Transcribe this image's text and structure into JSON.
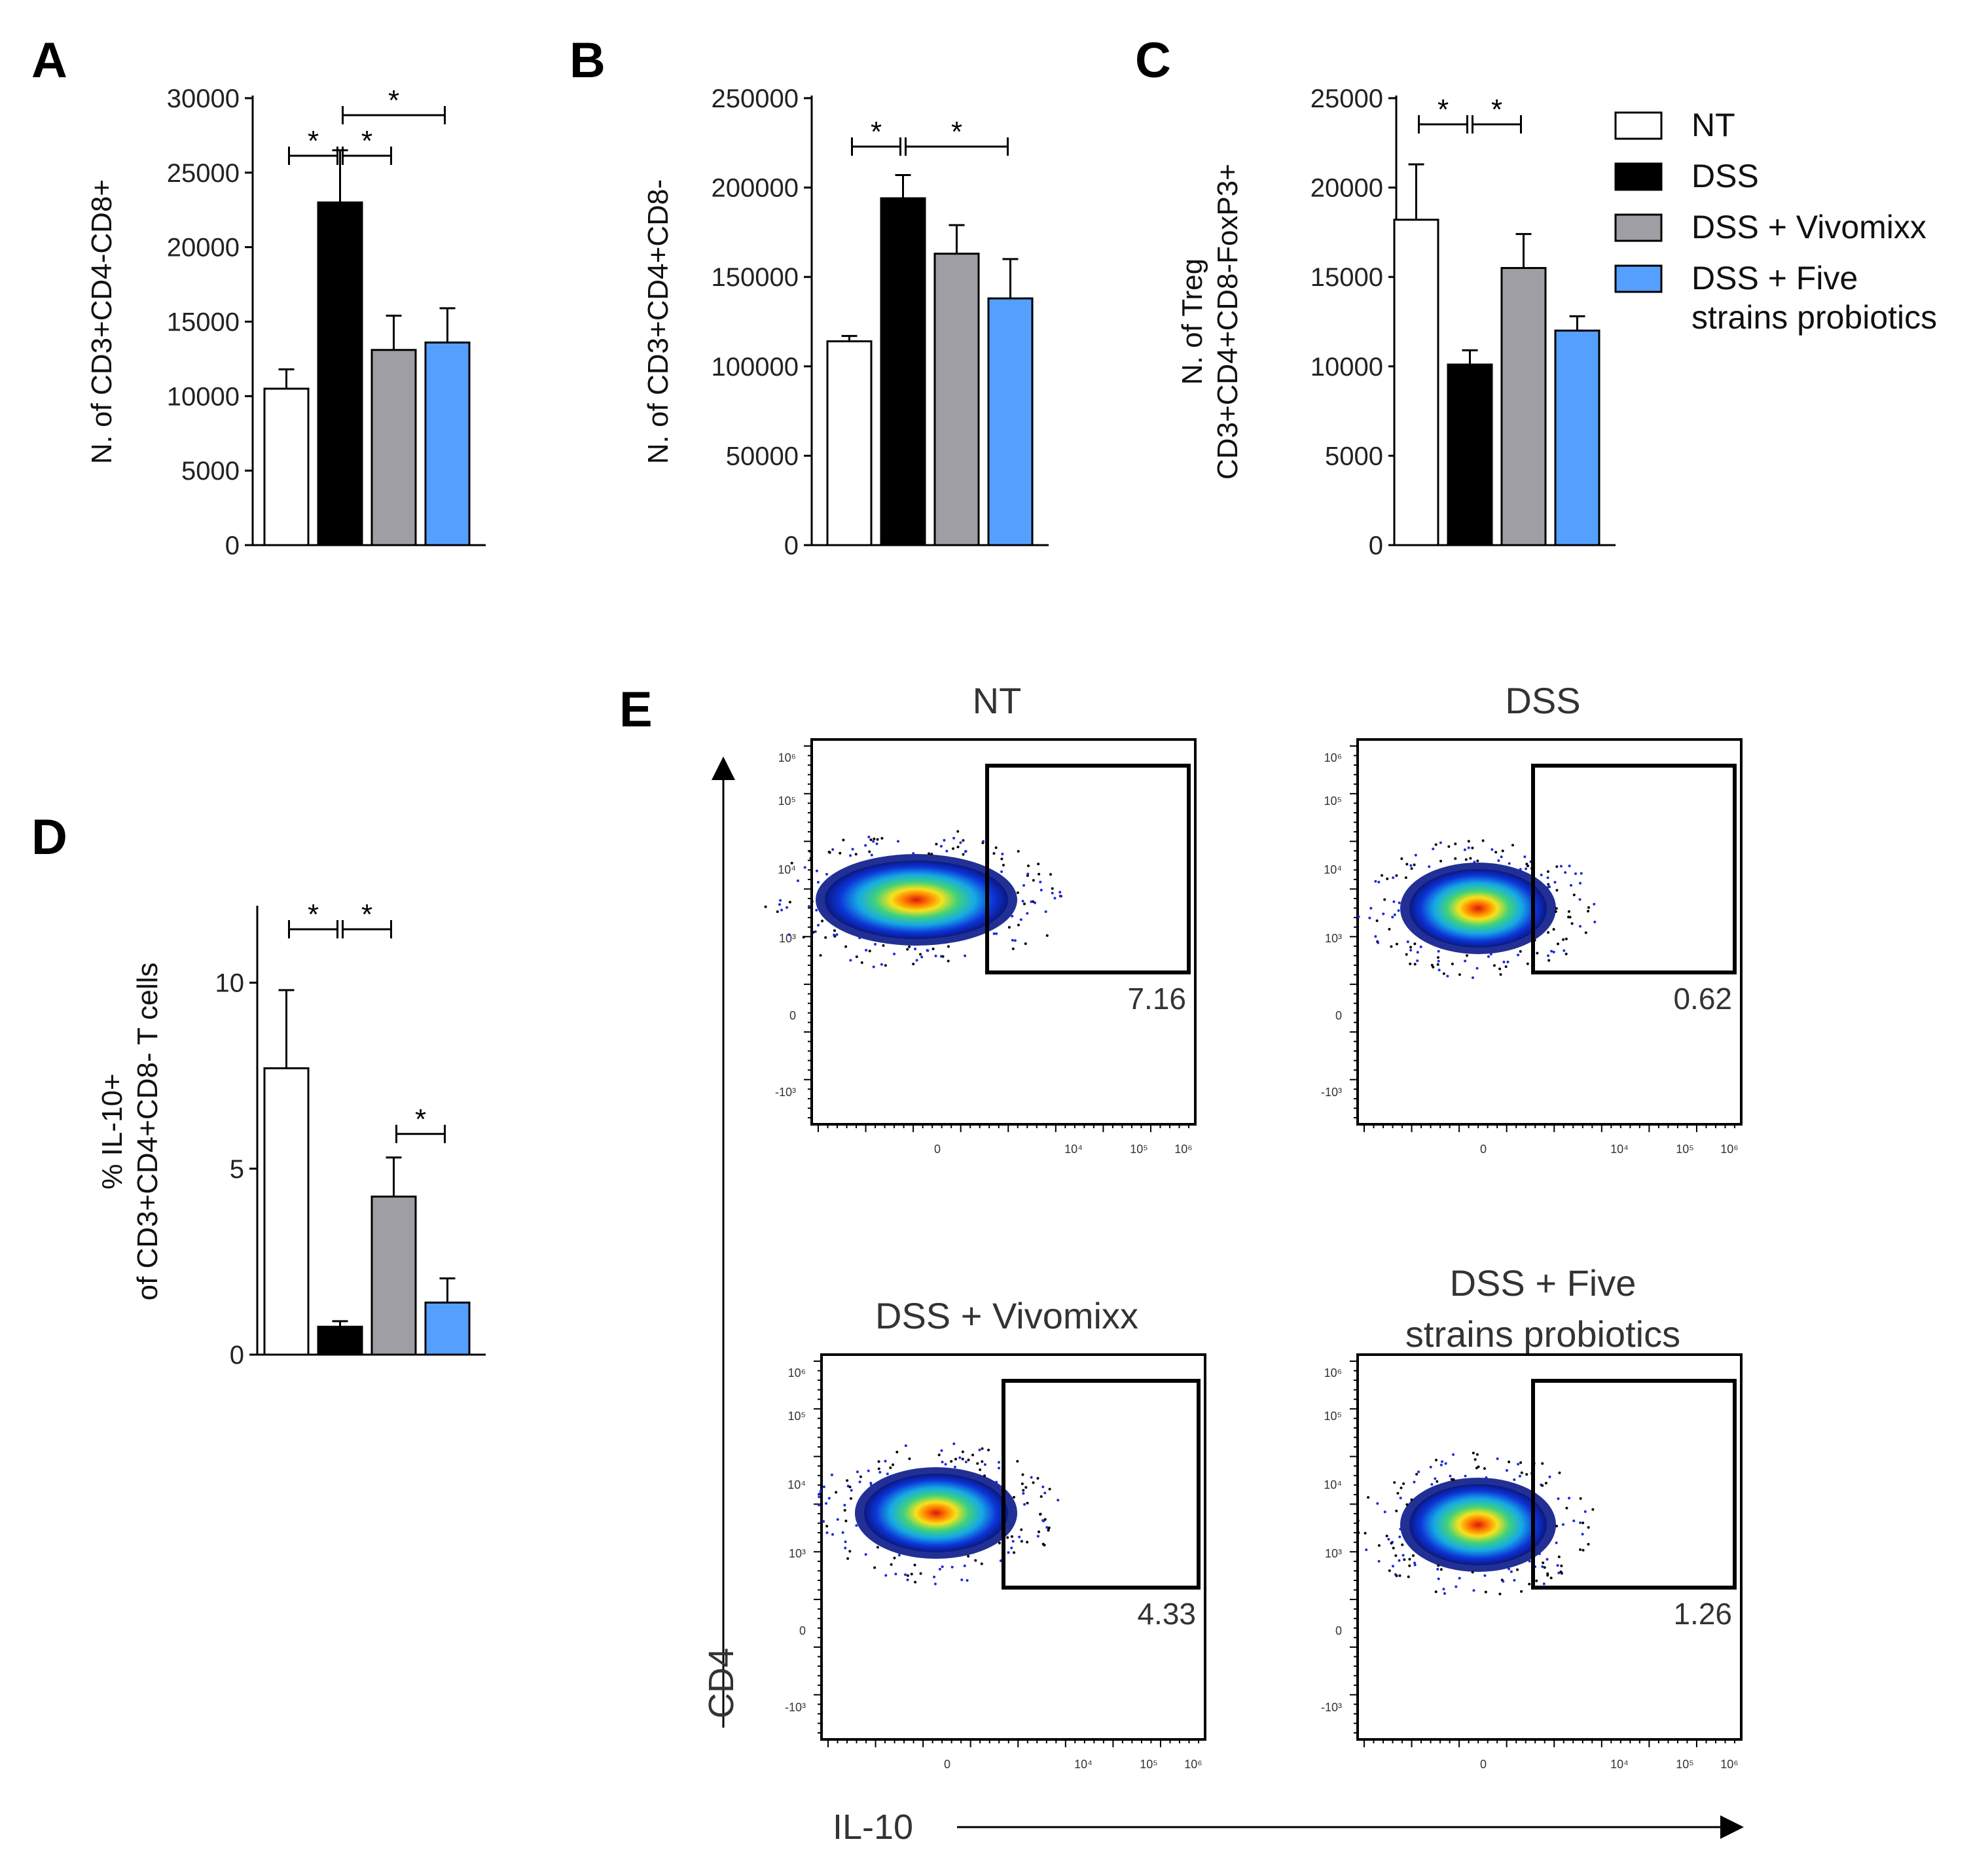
{
  "colors": {
    "NT": "#ffffff",
    "DSS": "#000000",
    "DSS + Vivomixx": "#9e9ea4",
    "DSS + Five strains probiotics": "#55a0ff"
  },
  "legend": {
    "items": [
      {
        "label_lines": [
          "NT"
        ],
        "color": "#ffffff"
      },
      {
        "label_lines": [
          "DSS"
        ],
        "color": "#000000"
      },
      {
        "label_lines": [
          "DSS + Vivomixx"
        ],
        "color": "#9e9ea4"
      },
      {
        "label_lines": [
          "DSS + Five",
          "strains probiotics"
        ],
        "color": "#55a0ff"
      }
    ]
  },
  "chart_data": [
    {
      "panel": "A",
      "type": "bar",
      "categories": [
        "NT",
        "DSS",
        "DSS + Vivomixx",
        "DSS + Five strains probiotics"
      ],
      "values": [
        10500,
        23000,
        13100,
        13600
      ],
      "errors": [
        1300,
        3500,
        2300,
        2300
      ],
      "ylabel_lines": [
        "N. of CD3+CD4-CD8+"
      ],
      "ylim": [
        0,
        30000
      ],
      "yticks": [
        0,
        5000,
        10000,
        15000,
        20000,
        25000,
        30000
      ],
      "significance": [
        {
          "from": 0,
          "to": 1,
          "label": "*"
        },
        {
          "from": 1,
          "to": 2,
          "label": "*"
        },
        {
          "from": 1,
          "to": 3,
          "label": "*"
        }
      ]
    },
    {
      "panel": "B",
      "type": "bar",
      "categories": [
        "NT",
        "DSS",
        "DSS + Vivomixx",
        "DSS + Five strains probiotics"
      ],
      "values": [
        114000,
        194000,
        163000,
        138000
      ],
      "errors": [
        3000,
        13000,
        16000,
        22000
      ],
      "ylabel_lines": [
        "N. of CD3+CD4+CD8-"
      ],
      "ylim": [
        0,
        250000
      ],
      "yticks": [
        0,
        50000,
        100000,
        150000,
        200000,
        250000
      ],
      "significance": [
        {
          "from": 0,
          "to": 1,
          "label": "*"
        },
        {
          "from": 1,
          "to": 3,
          "label": "*"
        }
      ]
    },
    {
      "panel": "C",
      "type": "bar",
      "categories": [
        "NT",
        "DSS",
        "DSS + Vivomixx",
        "DSS + Five strains probiotics"
      ],
      "values": [
        18200,
        10100,
        15500,
        12000
      ],
      "errors": [
        3100,
        800,
        1900,
        800
      ],
      "ylabel_lines": [
        "N. of Treg",
        "CD3+CD4+CD8-FoxP3+"
      ],
      "ylim": [
        0,
        25000
      ],
      "yticks": [
        0,
        5000,
        10000,
        15000,
        20000,
        25000
      ],
      "significance": [
        {
          "from": 0,
          "to": 1,
          "label": "*"
        },
        {
          "from": 1,
          "to": 2,
          "label": "*"
        }
      ]
    },
    {
      "panel": "D",
      "type": "bar",
      "categories": [
        "NT",
        "DSS",
        "DSS + Vivomixx",
        "DSS + Five strains probiotics"
      ],
      "values": [
        7.7,
        0.75,
        4.25,
        1.4
      ],
      "errors": [
        2.1,
        0.15,
        1.05,
        0.65
      ],
      "ylabel_lines": [
        "% IL-10+",
        "of CD3+CD4+CD8- T cells"
      ],
      "ylim": [
        0,
        12
      ],
      "yticks": [
        0,
        5,
        10
      ],
      "significance": [
        {
          "from": 0,
          "to": 1,
          "label": "*"
        },
        {
          "from": 1,
          "to": 2,
          "label": "*"
        },
        {
          "from": 2,
          "to": 3,
          "label": "*"
        }
      ]
    }
  ],
  "flow": {
    "panel": "E",
    "xlabel": "IL-10",
    "ylabel": "CD4",
    "xtick_labels": [
      "0",
      "10⁴",
      "10⁵",
      "10⁶"
    ],
    "ytick_labels": [
      "10⁶",
      "10⁵",
      "10⁴",
      "10³",
      "0",
      "-10³"
    ],
    "plots": [
      {
        "title_lines": [
          "NT"
        ],
        "gate_percent": "7.16"
      },
      {
        "title_lines": [
          "DSS"
        ],
        "gate_percent": "0.62"
      },
      {
        "title_lines": [
          "DSS + Vivomixx"
        ],
        "gate_percent": "4.33"
      },
      {
        "title_lines": [
          "DSS + Five",
          "strains probiotics"
        ],
        "gate_percent": "1.26"
      }
    ]
  }
}
